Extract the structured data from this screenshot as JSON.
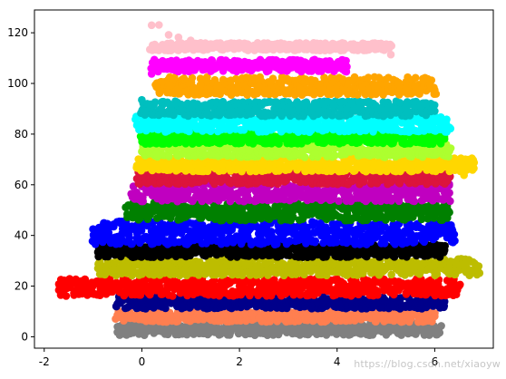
{
  "chart_data": {
    "type": "scatter",
    "title": "",
    "xlabel": "",
    "ylabel": "",
    "xlim": [
      -2.2,
      7.2
    ],
    "ylim": [
      -4.5,
      129
    ],
    "x_ticks": [
      -2,
      0,
      2,
      4,
      6
    ],
    "y_ticks": [
      0,
      20,
      40,
      60,
      80,
      100,
      120
    ],
    "x_tick_labels": [
      "-2",
      "0",
      "2",
      "4",
      "6"
    ],
    "y_tick_labels": [
      "0",
      "20",
      "40",
      "60",
      "80",
      "100",
      "120"
    ],
    "grid": false,
    "legend": "none",
    "watermark": "https://blog.csdn.net/xiaoyw",
    "series": [
      {
        "color": "#808080",
        "x_range": [
          -0.5,
          6.1
        ],
        "y_center": 3,
        "y_spread": 2.4,
        "points": [
          [
            -0.5,
            1.8
          ],
          [
            -0.3,
            5
          ],
          [
            0.0,
            2.8
          ],
          [
            1.0,
            3.3
          ],
          [
            2.2,
            2.7
          ],
          [
            3.4,
            3.1
          ],
          [
            4.5,
            2.6
          ],
          [
            5.6,
            3.2
          ],
          [
            6.1,
            1.6
          ]
        ]
      },
      {
        "color": "#ff7f50",
        "x_range": [
          -0.5,
          6.0
        ],
        "y_center": 8,
        "y_spread": 2.2,
        "points": [
          [
            -0.5,
            8.6
          ],
          [
            0.0,
            7.4
          ],
          [
            1.2,
            8.2
          ],
          [
            2.4,
            7.6
          ],
          [
            3.6,
            8.4
          ],
          [
            4.8,
            7.8
          ],
          [
            6.0,
            8.1
          ]
        ]
      },
      {
        "color": "#00008b",
        "x_range": [
          -0.5,
          6.2
        ],
        "y_center": 13.5,
        "y_spread": 2.4,
        "points": [
          [
            -0.5,
            13
          ],
          [
            0.0,
            14.1
          ],
          [
            1.2,
            13.4
          ],
          [
            2.4,
            12.9
          ],
          [
            3.6,
            13.8
          ],
          [
            4.8,
            13.2
          ],
          [
            6.2,
            13.9
          ]
        ]
      },
      {
        "color": "#ff0000",
        "x_range": [
          -1.7,
          6.5
        ],
        "y_center": 19.5,
        "y_spread": 3.4,
        "points": [
          [
            -1.7,
            18.4
          ],
          [
            -1.2,
            18.3
          ],
          [
            -0.7,
            18.1
          ],
          [
            -0.3,
            20.5
          ],
          [
            0.8,
            19.2
          ],
          [
            2.0,
            20.1
          ],
          [
            3.2,
            19.4
          ],
          [
            4.4,
            20.2
          ],
          [
            5.6,
            19.5
          ],
          [
            6.5,
            20
          ]
        ]
      },
      {
        "color": "#bdbd00",
        "x_range": [
          -0.9,
          6.9
        ],
        "y_center": 27.5,
        "y_spread": 3.4,
        "points": [
          [
            -0.9,
            27
          ],
          [
            -0.4,
            28.2
          ],
          [
            0.6,
            27.4
          ],
          [
            1.8,
            28.3
          ],
          [
            3.0,
            27.1
          ],
          [
            4.2,
            28.1
          ],
          [
            5.4,
            27.3
          ],
          [
            6.5,
            28.2
          ],
          [
            6.9,
            27.9
          ]
        ]
      },
      {
        "color": "#000000",
        "x_range": [
          -0.9,
          6.2
        ],
        "y_center": 34,
        "y_spread": 2.6,
        "points": [
          [
            -0.9,
            33.4
          ],
          [
            -0.4,
            34.6
          ],
          [
            0.6,
            34.1
          ],
          [
            1.8,
            33.6
          ],
          [
            3.0,
            35.2
          ],
          [
            4.2,
            34
          ],
          [
            5.4,
            33.8
          ],
          [
            6.2,
            34.2
          ]
        ]
      },
      {
        "color": "#0000ff",
        "x_range": [
          -1.0,
          6.4
        ],
        "y_center": 41,
        "y_spread": 4.6,
        "points": [
          [
            -1.0,
            42.5
          ],
          [
            -0.9,
            40.8
          ],
          [
            -0.8,
            37.4
          ],
          [
            -0.5,
            39.5
          ],
          [
            0.4,
            41.2
          ],
          [
            1.6,
            40.6
          ],
          [
            2.8,
            41.8
          ],
          [
            4.0,
            42.2
          ],
          [
            5.2,
            41
          ],
          [
            6.4,
            40.4
          ]
        ]
      },
      {
        "color": "#008000",
        "x_range": [
          -0.3,
          6.3
        ],
        "y_center": 49.5,
        "y_spread": 3.6,
        "points": [
          [
            -0.3,
            48.4
          ],
          [
            0.6,
            49.8
          ],
          [
            1.8,
            50.1
          ],
          [
            3.0,
            49.2
          ],
          [
            4.2,
            49.6
          ],
          [
            5.4,
            50
          ],
          [
            6.3,
            49.1
          ]
        ]
      },
      {
        "color": "#c000c0",
        "x_range": [
          -0.2,
          6.3
        ],
        "y_center": 57,
        "y_spread": 3.6,
        "points": [
          [
            -0.2,
            56.4
          ],
          [
            0.8,
            57.6
          ],
          [
            2.0,
            56.9
          ],
          [
            3.2,
            57.3
          ],
          [
            4.4,
            56.6
          ],
          [
            5.6,
            57.5
          ],
          [
            6.3,
            56.8
          ]
        ]
      },
      {
        "color": "#dc143c",
        "x_range": [
          -0.1,
          6.3
        ],
        "y_center": 63,
        "y_spread": 2.8,
        "points": [
          [
            -0.1,
            62.4
          ],
          [
            0.9,
            63.5
          ],
          [
            2.1,
            62.8
          ],
          [
            3.3,
            63.4
          ],
          [
            4.5,
            62.6
          ],
          [
            5.7,
            63.2
          ],
          [
            6.3,
            62.9
          ]
        ]
      },
      {
        "color": "#ffd700",
        "x_range": [
          -0.1,
          6.8
        ],
        "y_center": 68,
        "y_spread": 2.8,
        "points": [
          [
            -0.1,
            67.6
          ],
          [
            0.9,
            68.4
          ],
          [
            2.1,
            67.8
          ],
          [
            3.3,
            68.6
          ],
          [
            4.5,
            67.9
          ],
          [
            5.7,
            68.2
          ],
          [
            6.4,
            67.6
          ],
          [
            6.8,
            66.5
          ],
          [
            6.6,
            63.8
          ]
        ]
      },
      {
        "color": "#adff2f",
        "x_range": [
          0.0,
          6.3
        ],
        "y_center": 73.5,
        "y_spread": 2.6,
        "points": [
          [
            0.0,
            73.1
          ],
          [
            1.0,
            73.9
          ],
          [
            2.2,
            73.4
          ],
          [
            3.4,
            74
          ],
          [
            4.6,
            73.2
          ],
          [
            5.8,
            73.8
          ],
          [
            6.3,
            73.3
          ]
        ]
      },
      {
        "color": "#00ff00",
        "x_range": [
          0.0,
          6.2
        ],
        "y_center": 78.5,
        "y_spread": 2.4,
        "points": [
          [
            0.0,
            78.2
          ],
          [
            1.0,
            79
          ],
          [
            2.2,
            78.4
          ],
          [
            3.4,
            79.1
          ],
          [
            4.6,
            78.3
          ],
          [
            5.8,
            78.8
          ],
          [
            6.2,
            78.1
          ]
        ]
      },
      {
        "color": "#00ffff",
        "x_range": [
          -0.1,
          6.3
        ],
        "y_center": 84,
        "y_spread": 3.2,
        "points": [
          [
            -0.1,
            83.5
          ],
          [
            0.2,
            84.6
          ],
          [
            1.4,
            84
          ],
          [
            2.6,
            84.8
          ],
          [
            3.8,
            83.9
          ],
          [
            5.0,
            84.3
          ],
          [
            6.3,
            82.6
          ]
        ]
      },
      {
        "color": "#00bfbf",
        "x_range": [
          0.0,
          6.0
        ],
        "y_center": 90,
        "y_spread": 3.0,
        "points": [
          [
            0.0,
            93.5
          ],
          [
            0.6,
            90.2
          ],
          [
            1.8,
            89.6
          ],
          [
            3.0,
            90.4
          ],
          [
            4.2,
            89.8
          ],
          [
            5.4,
            90.3
          ],
          [
            6.0,
            89.1
          ]
        ]
      },
      {
        "color": "#ffa500",
        "x_range": [
          0.3,
          6.0
        ],
        "y_center": 99,
        "y_spread": 3.6,
        "points": [
          [
            0.3,
            98.6
          ],
          [
            1.2,
            99.4
          ],
          [
            2.4,
            98.8
          ],
          [
            3.6,
            99.6
          ],
          [
            4.8,
            98.9
          ],
          [
            5.6,
            99.2
          ],
          [
            6.0,
            97.4
          ]
        ]
      },
      {
        "color": "#ff00ff",
        "x_range": [
          0.2,
          4.2
        ],
        "y_center": 107,
        "y_spread": 2.4,
        "points": [
          [
            0.2,
            103.8
          ],
          [
            0.6,
            106.5
          ],
          [
            1.2,
            107.4
          ],
          [
            1.8,
            108.1
          ],
          [
            2.4,
            107.6
          ],
          [
            3.0,
            108.4
          ],
          [
            3.8,
            107.9
          ],
          [
            4.2,
            106.6
          ]
        ]
      },
      {
        "color": "#ffc0cb",
        "x_range": [
          0.2,
          5.1
        ],
        "y_center": 114.5,
        "y_spread": 1.5,
        "points": [
          [
            0.2,
            123
          ],
          [
            0.35,
            123.1
          ],
          [
            0.55,
            119.2
          ],
          [
            0.75,
            118.2
          ],
          [
            1.0,
            117
          ],
          [
            1.5,
            115.6
          ],
          [
            2.3,
            114.9
          ],
          [
            3.1,
            114.7
          ],
          [
            3.9,
            114.4
          ],
          [
            4.7,
            114.1
          ],
          [
            5.1,
            111.4
          ]
        ]
      }
    ]
  }
}
